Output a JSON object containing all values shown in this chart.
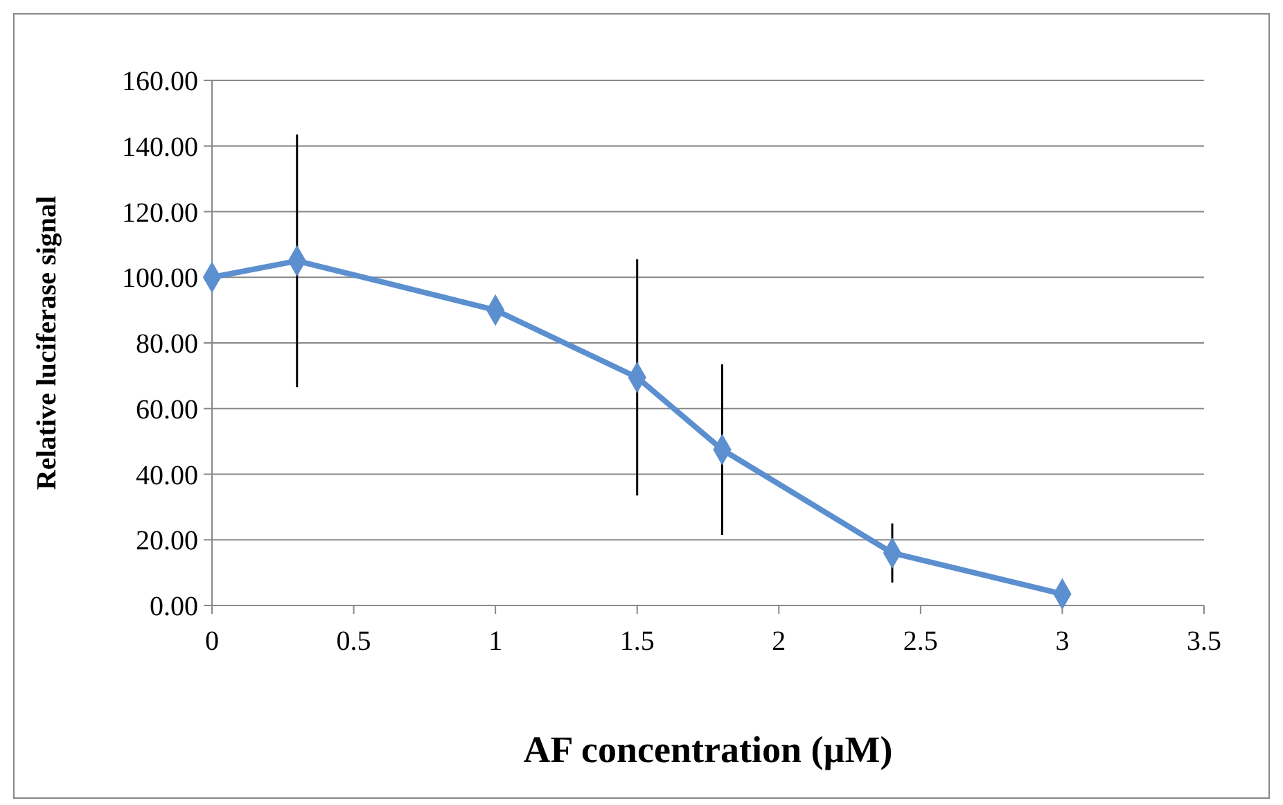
{
  "chart_data": {
    "type": "line",
    "xlabel": "AF concentration (µM)",
    "ylabel": "Relative luciferase signal",
    "x": [
      0,
      0.3,
      1,
      1.5,
      1.8,
      2.4,
      3
    ],
    "series": [
      {
        "color": "#5b8fcf",
        "values": [
          100,
          105,
          90,
          69.5,
          47.5,
          16,
          3.5
        ],
        "errors": [
          null,
          38.5,
          null,
          36,
          26,
          9,
          null
        ]
      }
    ],
    "xlim": [
      0,
      3.5
    ],
    "xticks": [
      0,
      0.5,
      1,
      1.5,
      2,
      2.5,
      3,
      3.5
    ],
    "ylim": [
      0,
      160
    ],
    "yticks": [
      {
        "value": 0,
        "label": "0.00"
      },
      {
        "value": 20,
        "label": "20.00"
      },
      {
        "value": 40,
        "label": "40.00"
      },
      {
        "value": 60,
        "label": "60.00"
      },
      {
        "value": 80,
        "label": "80.00"
      },
      {
        "value": 100,
        "label": "100.00"
      },
      {
        "value": 120,
        "label": "120.00"
      },
      {
        "value": 140,
        "label": "140.00"
      },
      {
        "value": 160,
        "label": "160.00"
      }
    ],
    "grid": "y",
    "marker": "diamond",
    "line_style": "solid"
  }
}
